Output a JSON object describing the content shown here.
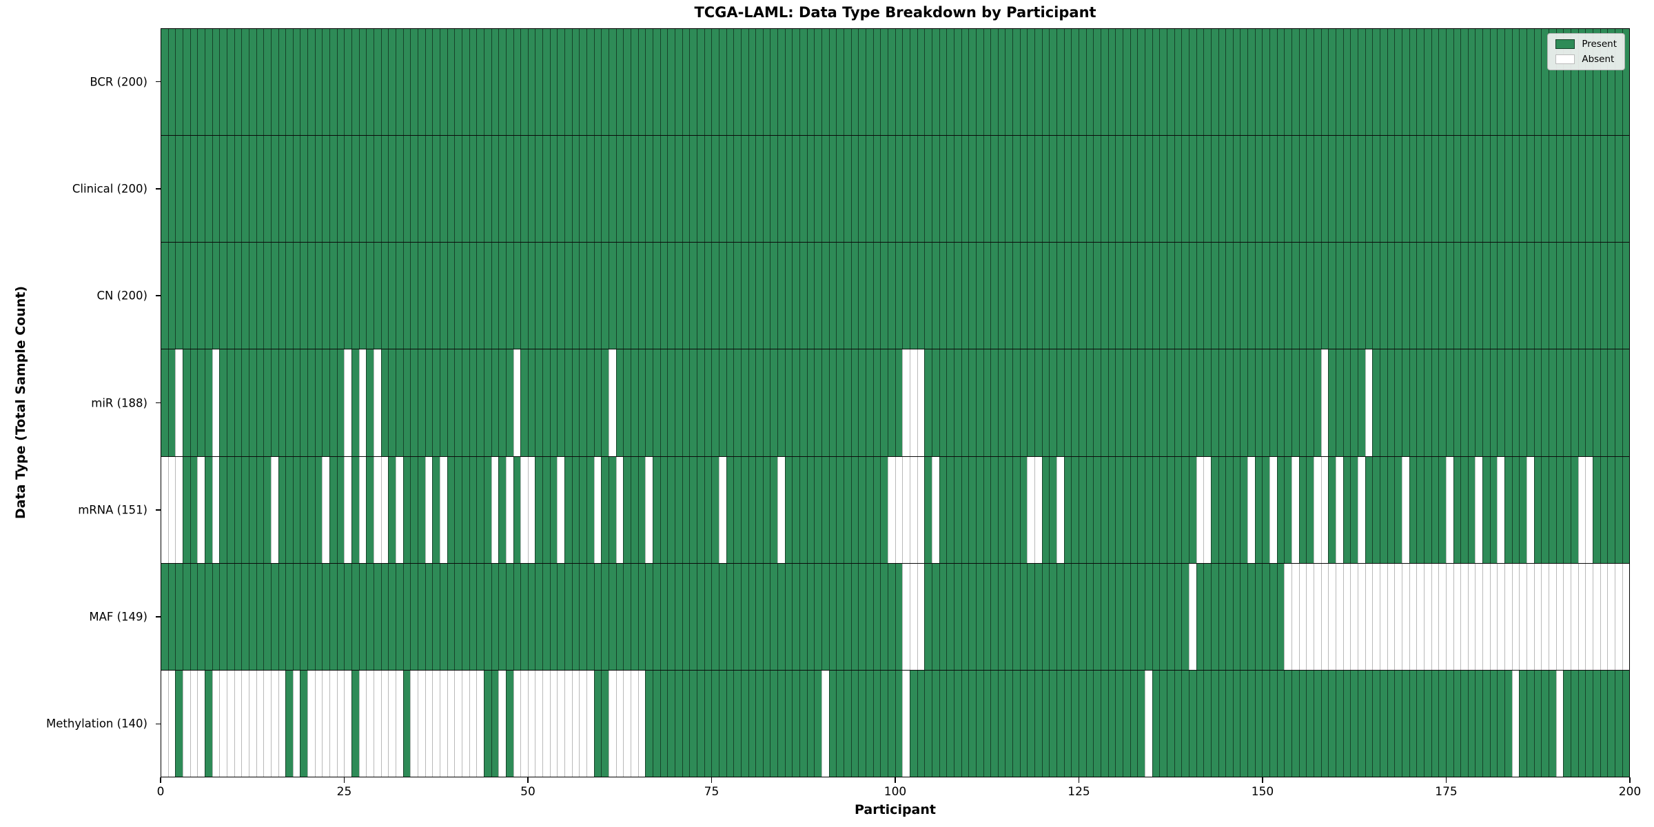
{
  "title": "TCGA-LAML: Data Type Breakdown by Participant",
  "xlabel": "Participant",
  "ylabel": "Data Type (Total Sample Count)",
  "legend": {
    "present_label": "Present",
    "absent_label": "Absent"
  },
  "colors": {
    "present": "#2e8b57",
    "absent": "#ffffff"
  },
  "n_participants": 200,
  "x_ticks": [
    0,
    25,
    50,
    75,
    100,
    125,
    150,
    175,
    200
  ],
  "chart_data": {
    "type": "heatmap",
    "x_axis": {
      "label": "Participant",
      "range": [
        0,
        200
      ],
      "ticks": [
        0,
        25,
        50,
        75,
        100,
        125,
        150,
        175,
        200
      ]
    },
    "y_axis": {
      "label": "Data Type (Total Sample Count)"
    },
    "legend_entries": [
      "Present",
      "Absent"
    ],
    "grid": false,
    "legend_position": "upper right",
    "rows": [
      {
        "name": "BCR",
        "label": "BCR (200)",
        "present_count": 200,
        "absent_participants": []
      },
      {
        "name": "Clinical",
        "label": "Clinical (200)",
        "present_count": 200,
        "absent_participants": []
      },
      {
        "name": "CN",
        "label": "CN (200)",
        "present_count": 200,
        "absent_participants": []
      },
      {
        "name": "miR",
        "label": "miR (188)",
        "present_count": 188,
        "absent_participants": [
          2,
          7,
          25,
          27,
          29,
          48,
          61,
          101,
          102,
          103,
          158,
          164
        ]
      },
      {
        "name": "mRNA",
        "label": "mRNA (151)",
        "present_count": 151,
        "absent_participants": [
          0,
          1,
          2,
          5,
          7,
          15,
          22,
          25,
          27,
          29,
          30,
          32,
          36,
          38,
          45,
          47,
          49,
          50,
          54,
          59,
          62,
          66,
          76,
          84,
          99,
          100,
          101,
          102,
          103,
          105,
          118,
          119,
          122,
          141,
          142,
          148,
          151,
          154,
          157,
          158,
          160,
          163,
          169,
          175,
          179,
          182,
          186,
          193,
          194
        ]
      },
      {
        "name": "MAF",
        "label": "MAF (149)",
        "present_count": 149,
        "absent_participants": [
          101,
          102,
          103,
          140,
          153,
          154,
          155,
          156,
          157,
          158,
          159,
          160,
          161,
          162,
          163,
          164,
          165,
          166,
          167,
          168,
          169,
          170,
          171,
          172,
          173,
          174,
          175,
          176,
          177,
          178,
          179,
          180,
          181,
          182,
          183,
          184,
          185,
          186,
          187,
          188,
          189,
          190,
          191,
          192,
          193,
          194,
          195,
          196,
          197,
          198,
          199
        ]
      },
      {
        "name": "Methylation",
        "label": "Methylation (140)",
        "present_count": 140,
        "absent_participants": [
          0,
          1,
          3,
          4,
          5,
          7,
          8,
          9,
          10,
          11,
          12,
          13,
          14,
          15,
          16,
          18,
          20,
          21,
          22,
          23,
          24,
          25,
          27,
          28,
          29,
          30,
          31,
          32,
          34,
          35,
          36,
          37,
          38,
          39,
          40,
          41,
          42,
          43,
          46,
          48,
          49,
          50,
          51,
          52,
          53,
          54,
          55,
          56,
          57,
          58,
          61,
          62,
          63,
          64,
          65,
          90,
          101,
          134,
          184,
          190
        ]
      }
    ]
  }
}
